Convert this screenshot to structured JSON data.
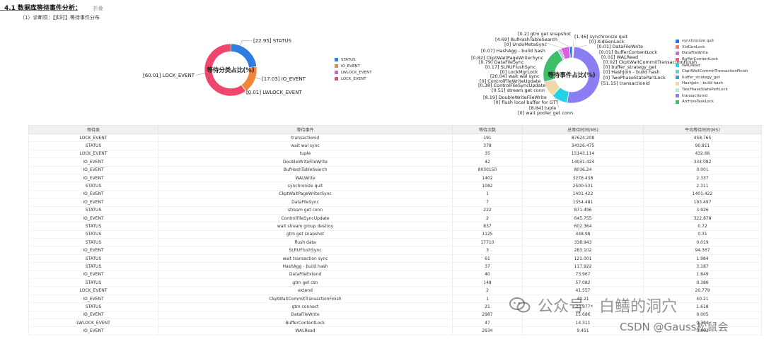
{
  "header": {
    "section_number": "4.1",
    "section_title": "数据库等待事件分析：",
    "section_tag": "折叠",
    "diagnosis": "（1）诊断项：【实时】等待事件分布"
  },
  "colors": {
    "STATUS": "#2f7de1",
    "IO_EVENT": "#f5843b",
    "LWLOCK_EVENT": "#d662e0",
    "LOCK_EVENT": "#f0466e",
    "synchronize_quit": "#1a73e8",
    "XidGenLock": "#f4845f",
    "DataFileWrite": "#e05fe6",
    "BufferContentLock": "#f05d7b",
    "WALRead": "#22d3e6",
    "CkptWaitCommitTransactionFinish": "#5fd1d6",
    "buffer_strategy_get": "#2aa8d8",
    "HashJoin_build_hash": "#f0d9a8",
    "TwoPhaseStatePartLock": "#c0e4f4",
    "transactionid": "#8a7ff2",
    "ArchiveTaskLock": "#3fbf6a"
  },
  "chart_data": [
    {
      "type": "pie",
      "title": "等待分类占比(%)",
      "slices": [
        {
          "name": "STATUS",
          "value": 22.95,
          "label": "[22.95] STATUS"
        },
        {
          "name": "IO_EVENT",
          "value": 17.03,
          "label": "[17.03] IO_EVENT"
        },
        {
          "name": "LWLOCK_EVENT",
          "value": 0.01,
          "label": "[0.01] LWLOCK_EVENT"
        },
        {
          "name": "LOCK_EVENT",
          "value": 60.01,
          "label": "[60.01] LOCK_EVENT"
        }
      ],
      "legend": [
        "STATUS",
        "IO_EVENT",
        "LWLOCK_EVENT",
        "LOCK_EVENT"
      ]
    },
    {
      "type": "pie",
      "title": "等待事件占比(%)",
      "slices": [
        {
          "name": "transactionid",
          "value": 51.15,
          "label": "[51.15] transactionid",
          "color": "#8a7ff2"
        },
        {
          "name": "wait pooler get conn",
          "value": 0,
          "label": "[0] wait pooler get conn",
          "color": "#3fbf6a"
        },
        {
          "name": "tuple",
          "value": 8.84,
          "label": "[8.84] tuple",
          "color": "#22d3e6"
        },
        {
          "name": "flush local buffer for GTT",
          "value": 0,
          "label": "[0] flush local buffer for GTT",
          "color": "#f5843b"
        },
        {
          "name": "DoubleWriteFileWrite",
          "value": 8.19,
          "label": "[8.19] DoubleWriteFileWrite",
          "color": "#f0d9a8"
        },
        {
          "name": "stream get conn",
          "value": 0.51,
          "label": "[0.51] stream get conn",
          "color": "#f05d7b"
        },
        {
          "name": "ControlFileSyncUpdate",
          "value": 0.38,
          "label": "[0.38] ControlFileSyncUpdate",
          "color": "#2f7de1"
        },
        {
          "name": "ControlFileWriteUpdate",
          "value": 0,
          "label": "[0] ControlFileWriteUpdate",
          "color": "#2aa8d8"
        },
        {
          "name": "wait wal sync",
          "value": 20.04,
          "label": "[20.04] wait wal sync",
          "color": "#3fbf6a"
        },
        {
          "name": "LockMgrLock",
          "value": 0,
          "label": "[0] LockMgrLock",
          "color": "#f4845f"
        },
        {
          "name": "SLRUFlushSync",
          "value": 0.17,
          "label": "[0.17] SLRUFlushSync",
          "color": "#c0e4f4"
        },
        {
          "name": "DataFileSync",
          "value": 0.79,
          "label": "[0.79] DataFileSync",
          "color": "#5fd1d6"
        },
        {
          "name": "CkptWaitPageWriterSync",
          "value": 0.82,
          "label": "[0.82] CkptWaitPageWriterSync",
          "color": "#e05fe6"
        },
        {
          "name": "HashAgg - build hash",
          "value": 0.07,
          "label": "[0.07] HashAgg - build hash",
          "color": "#f0466e"
        },
        {
          "name": "UndoMetaSync",
          "value": 0,
          "label": "[0] UndoMetaSync",
          "color": "#1a73e8"
        },
        {
          "name": "BufHashTableSearch",
          "value": 4.69,
          "label": "[4.69] BufHashTableSearch",
          "color": "#d662e0"
        },
        {
          "name": "gtm get snapshot",
          "value": 0.2,
          "label": "[0.2] gtm get snapshot",
          "color": "#2aa8d8"
        },
        {
          "name": "synchronize quit",
          "value": 1.46,
          "label": "[1.46] synchronize quit",
          "color": "#1a73e8"
        },
        {
          "name": "XidGenLock",
          "value": 0,
          "label": "[0] XidGenLock",
          "color": "#f4845f"
        },
        {
          "name": "DataFileWrite",
          "value": 0.01,
          "label": "[0.01] DataFileWrite",
          "color": "#e05fe6"
        },
        {
          "name": "BufferContentLock",
          "value": 0.01,
          "label": "[0.01] BufferContentLock",
          "color": "#f05d7b"
        },
        {
          "name": "WALRead",
          "value": 0.01,
          "label": "[0.01] WALRead",
          "color": "#22d3e6"
        },
        {
          "name": "CkptWaitCommitTransactionFinish",
          "value": 0.02,
          "label": "[0.02] CkptWaitCommitTransactionFinish",
          "color": "#5fd1d6"
        },
        {
          "name": "buffer_strategy_get",
          "value": 0,
          "label": "[0] buffer_strategy_get",
          "color": "#2aa8d8"
        },
        {
          "name": "HashJoin - build hash",
          "value": 0,
          "label": "[0] HashJoin - build hash",
          "color": "#f0d9a8"
        },
        {
          "name": "TwoPhaseStatePartLock",
          "value": 0,
          "label": "[0] TwoPhaseStatePartLock",
          "color": "#c0e4f4"
        }
      ],
      "legend": [
        {
          "name": "synchronize quit",
          "color": "#1a73e8"
        },
        {
          "name": "XidGenLock",
          "color": "#f4845f"
        },
        {
          "name": "DataFileWrite",
          "color": "#e05fe6"
        },
        {
          "name": "BufferContentLock",
          "color": "#f05d7b"
        },
        {
          "name": "WALRead",
          "color": "#22d3e6"
        },
        {
          "name": "CkptWaitCommitTransactionFinish",
          "color": "#5fd1d6"
        },
        {
          "name": "buffer_strategy_get",
          "color": "#2aa8d8"
        },
        {
          "name": "HashJoin - build hash",
          "color": "#f0d9a8"
        },
        {
          "name": "TwoPhaseStatePartLock",
          "color": "#c0e4f4"
        },
        {
          "name": "transactionid",
          "color": "#8a7ff2"
        },
        {
          "name": "ArchiveTaskLock",
          "color": "#3fbf6a"
        }
      ]
    }
  ],
  "table": {
    "headers": [
      "等待类",
      "等待事件",
      "等待次数",
      "总等待时间(MS)",
      "平均等待时间(MS)"
    ],
    "rows": [
      [
        "LOCK_EVENT",
        "transactionid",
        "191",
        "87624.208",
        "458.765"
      ],
      [
        "STATUS",
        "wait wal sync",
        "378",
        "34326.475",
        "90.811"
      ],
      [
        "LOCK_EVENT",
        "tuple",
        "35",
        "15143.114",
        "432.66"
      ],
      [
        "IO_EVENT",
        "DoubleWriteFileWrite",
        "42",
        "14031.424",
        "334.082"
      ],
      [
        "IO_EVENT",
        "BufHashTableSearch",
        "8030150",
        "8036.24",
        "0.001"
      ],
      [
        "IO_EVENT",
        "WALWrite",
        "1402",
        "3276.438",
        "2.337"
      ],
      [
        "STATUS",
        "synchronize quit",
        "1082",
        "2500.531",
        "2.311"
      ],
      [
        "IO_EVENT",
        "CkptWaitPageWriterSync",
        "1",
        "1401.422",
        "1401.422"
      ],
      [
        "IO_EVENT",
        "DataFileSync",
        "7",
        "1354.481",
        "193.497"
      ],
      [
        "STATUS",
        "stream get conn",
        "222",
        "871.496",
        "3.926"
      ],
      [
        "IO_EVENT",
        "ControlFileSyncUpdate",
        "2",
        "645.755",
        "322.878"
      ],
      [
        "STATUS",
        "wait stream group destroy",
        "837",
        "602.364",
        "0.72"
      ],
      [
        "STATUS",
        "gtm get snapshot",
        "1125",
        "348.98",
        "0.31"
      ],
      [
        "STATUS",
        "flush data",
        "17710",
        "338.943",
        "0.019"
      ],
      [
        "IO_EVENT",
        "SLRUFlushSync",
        "3",
        "283.102",
        "94.367"
      ],
      [
        "STATUS",
        "wait transaction sync",
        "61",
        "121.001",
        "1.984"
      ],
      [
        "STATUS",
        "HashAgg - build hash",
        "37",
        "117.922",
        "3.187"
      ],
      [
        "IO_EVENT",
        "DataFileExtend",
        "40",
        "73.967",
        "1.849"
      ],
      [
        "STATUS",
        "gtm get csn",
        "148",
        "57.082",
        "0.386"
      ],
      [
        "LOCK_EVENT",
        "extend",
        "2",
        "41.557",
        "20.779"
      ],
      [
        "IO_EVENT",
        "CkptWaitCommitTransactionFinish",
        "1",
        "40.21",
        "40.21"
      ],
      [
        "STATUS",
        "gtm connect",
        "21",
        "33.977",
        "1.618"
      ],
      [
        "IO_EVENT",
        "DataFileWrite",
        "2987",
        "15.686",
        "0.005"
      ],
      [
        "LWLOCK_EVENT",
        "BufferContentLock",
        "47",
        "14.311",
        "0.304"
      ],
      [
        "IO_EVENT",
        "WALRead",
        "2934",
        "9.451",
        "0.003"
      ]
    ]
  },
  "watermark": {
    "text": "公众号 · 白鳝的洞穴",
    "credit": "CSDN @Gauss松鼠会"
  }
}
